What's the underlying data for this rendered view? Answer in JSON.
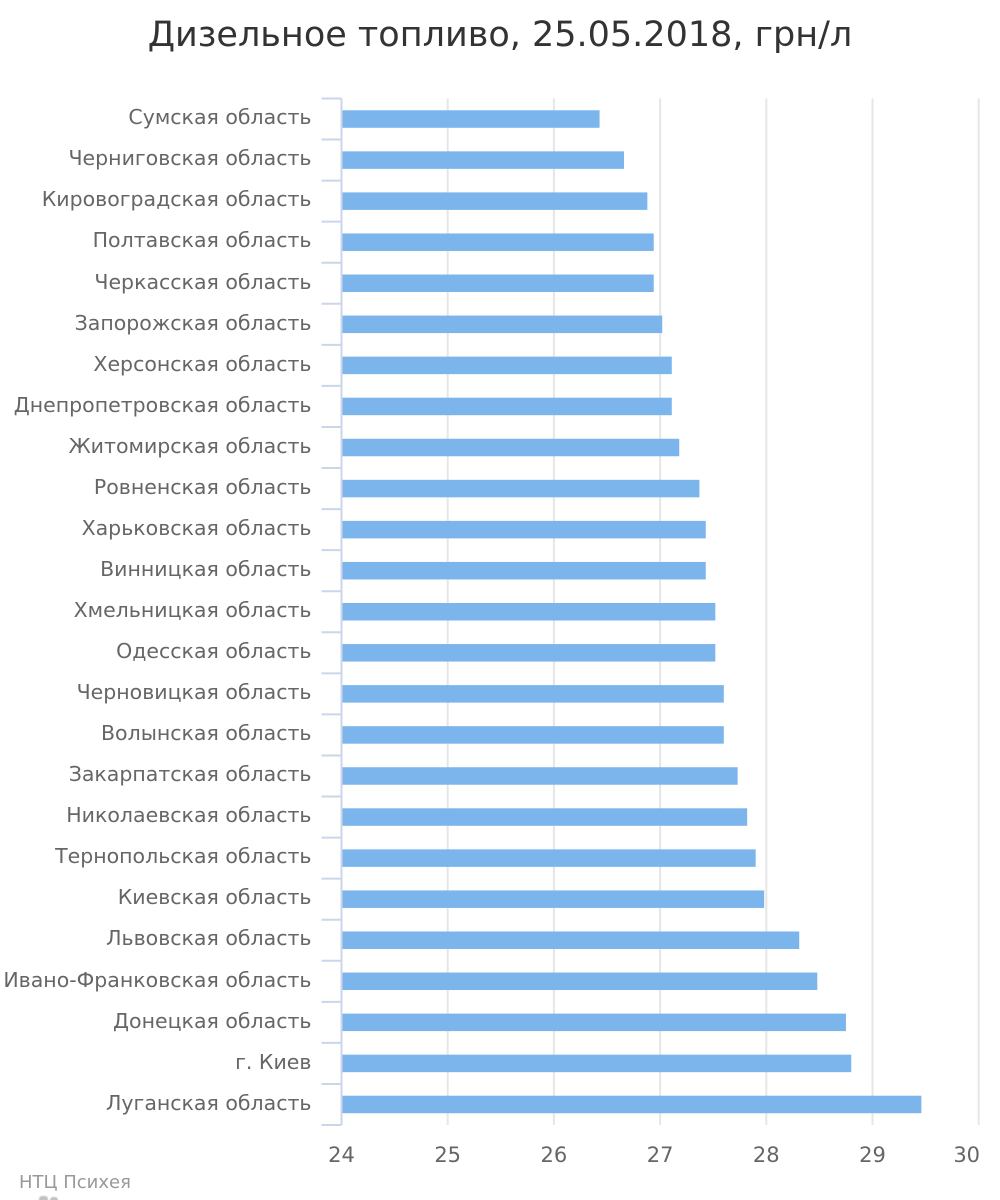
{
  "title": "Дизельное топливо, 25.05.2018, грн/л",
  "credits": "НТЦ Психея",
  "chart_data": {
    "type": "bar",
    "title": "Дизельное топливо, 25.05.2018, грн/л",
    "xlabel": "",
    "ylabel": "",
    "legend": false,
    "grid": true,
    "categories": [
      "Сумская область",
      "Черниговская область",
      "Кировоградская область",
      "Полтавская область",
      "Черкасская область",
      "Запорожская область",
      "Херсонская область",
      "Днепропетровская область",
      "Житомирская область",
      "Ровненская область",
      "Харьковская область",
      "Винницкая область",
      "Хмельницкая область",
      "Одесская область",
      "Черновицкая область",
      "Волынская область",
      "Закарпатская область",
      "Николаевская область",
      "Тернопольская область",
      "Киевская область",
      "Львовская область",
      "Ивано-Франковская область",
      "Донецкая область",
      "г. Киев",
      "Луганская область"
    ],
    "values": [
      26.43,
      26.66,
      26.88,
      26.94,
      26.94,
      27.02,
      27.11,
      27.11,
      27.18,
      27.37,
      27.43,
      27.43,
      27.52,
      27.52,
      27.6,
      27.6,
      27.73,
      27.82,
      27.9,
      27.98,
      28.31,
      28.48,
      28.75,
      28.8,
      29.46
    ],
    "value_axis": {
      "min": 24,
      "max": 30,
      "tick_interval": 1,
      "tick_labels": [
        "24",
        "25",
        "26",
        "27",
        "28",
        "29",
        "30"
      ]
    },
    "colors": {
      "bar": "#7cb5ec",
      "grid": "#e6e6e6",
      "axis": "#ccd6eb",
      "title_text": "#333333",
      "label_text": "#666666",
      "credits_text": "#999999"
    }
  }
}
